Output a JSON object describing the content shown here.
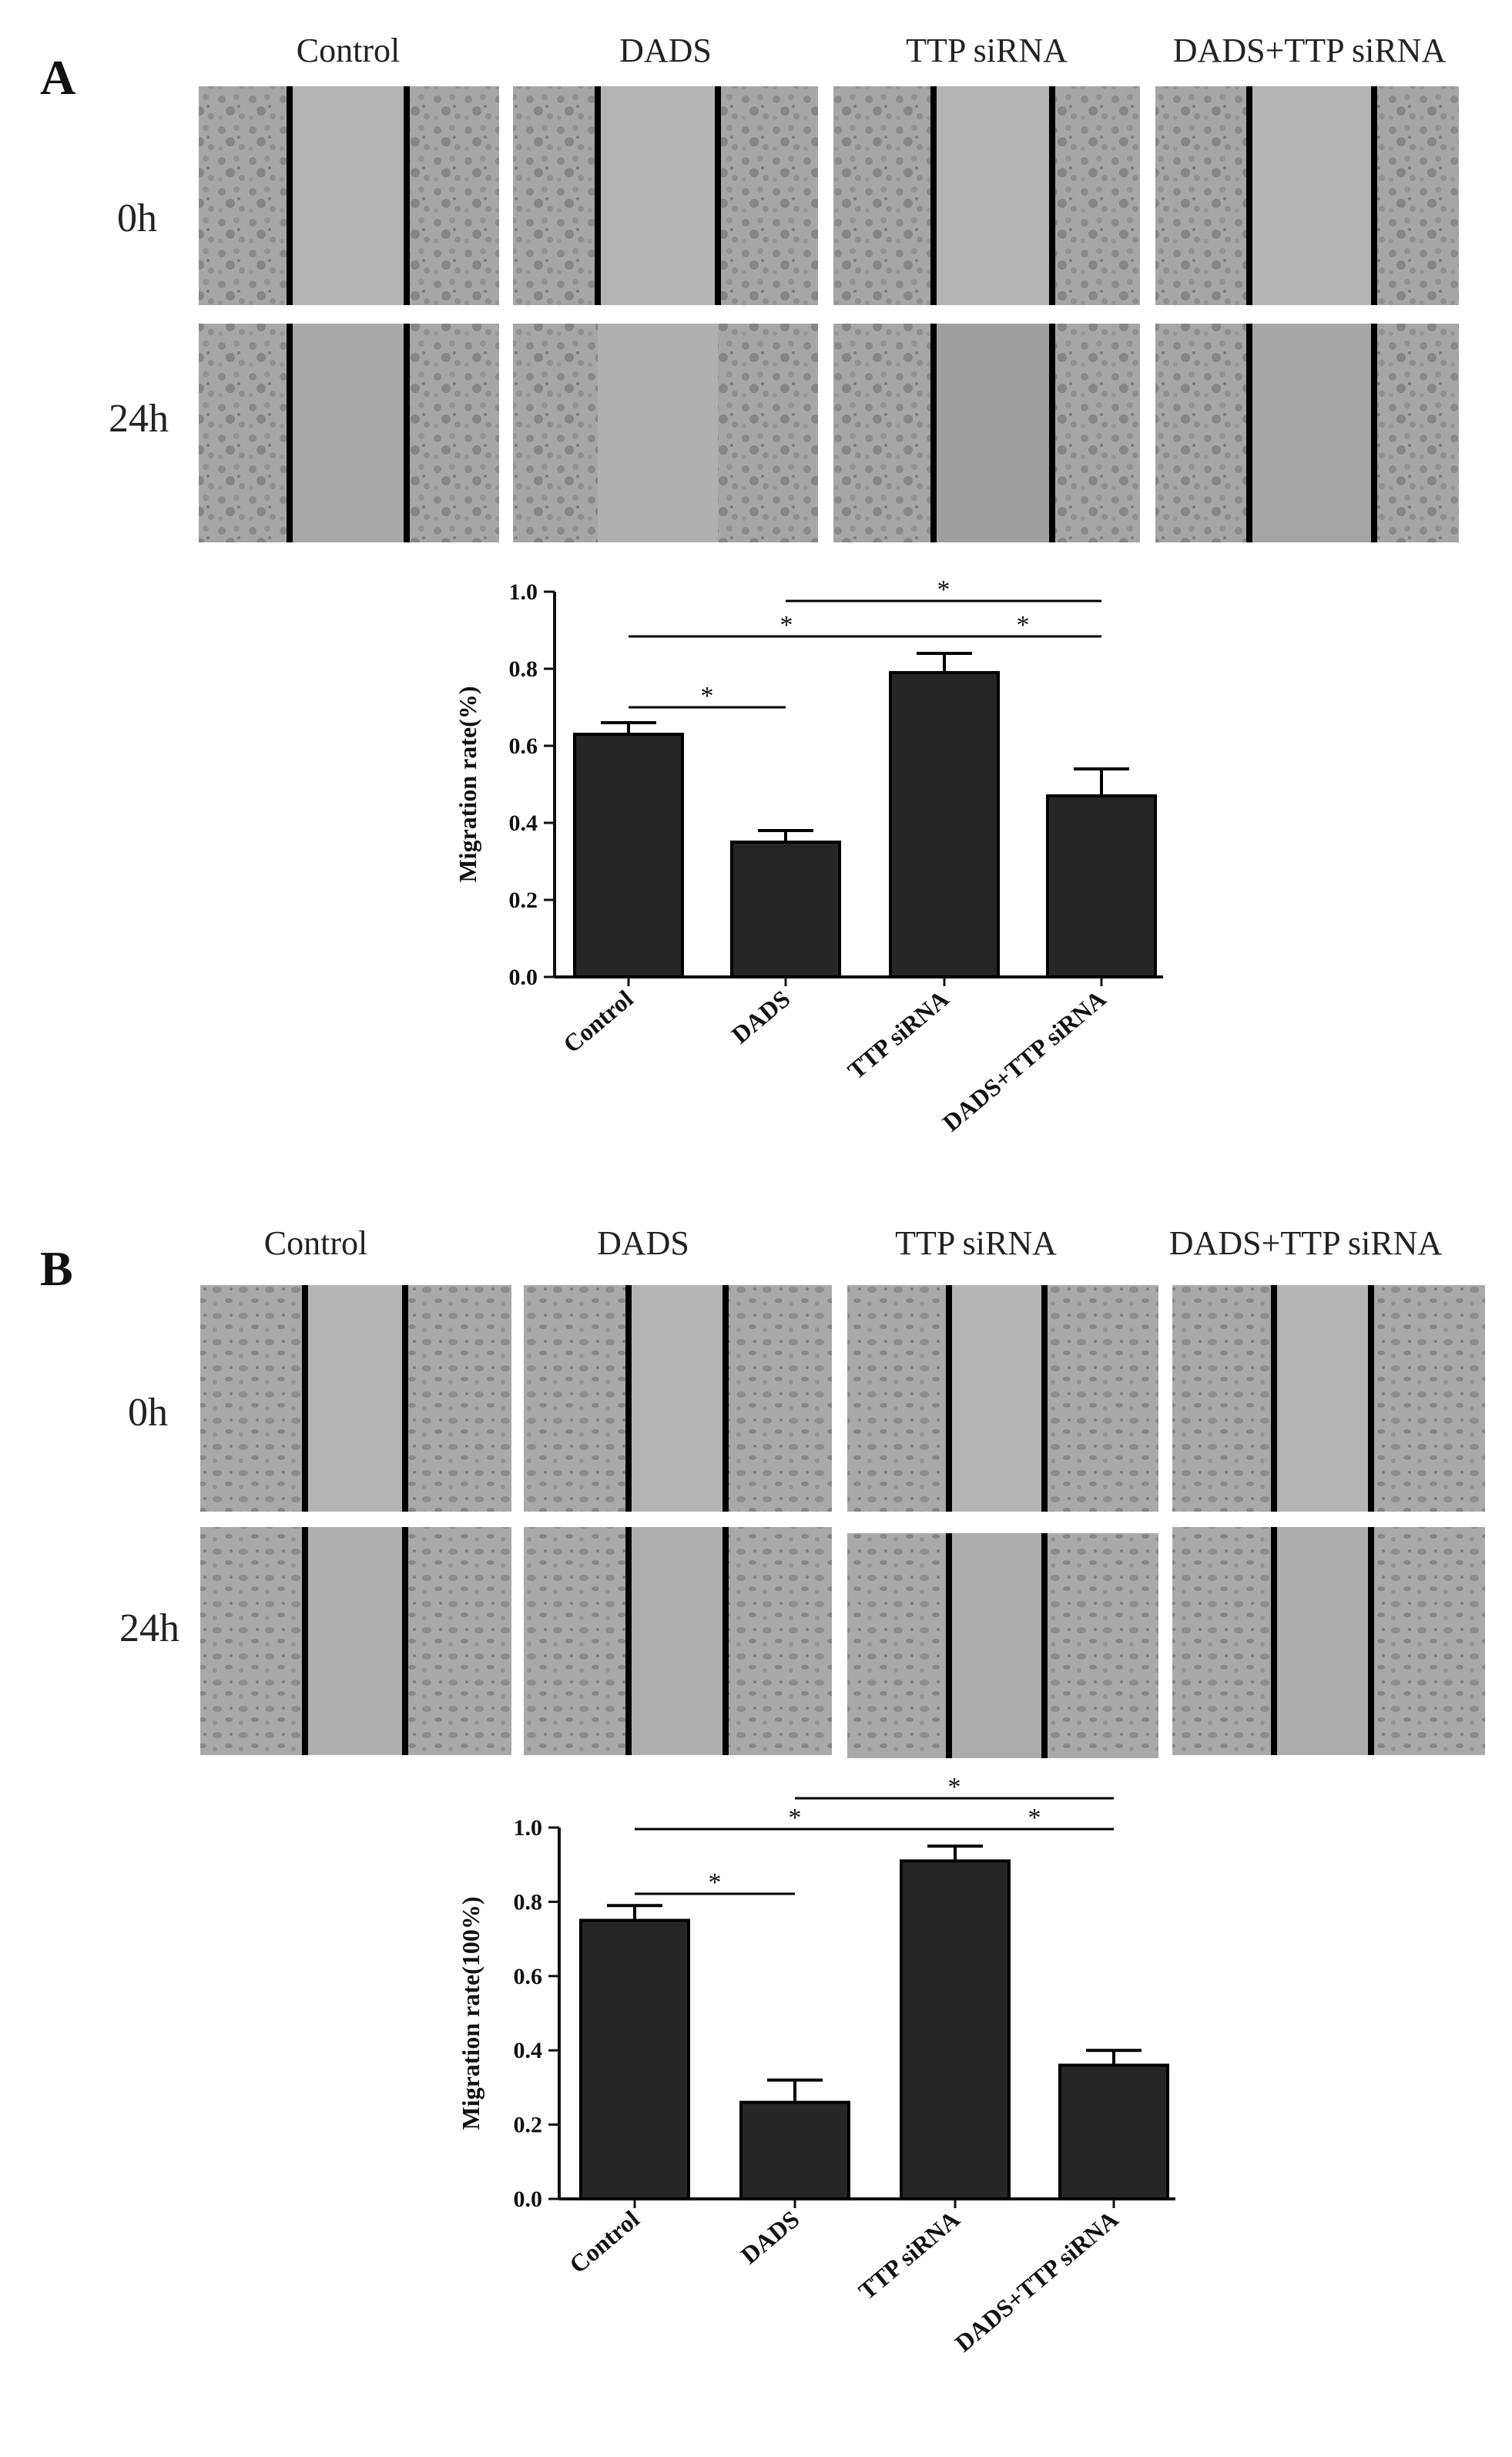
{
  "figure": {
    "panels": [
      {
        "letter": "A",
        "micrograph_columns": [
          "Control",
          "DADS",
          "TTP siRNA",
          "DADS+TTP siRNA"
        ],
        "micrograph_rows": [
          "0h",
          "24h"
        ]
      },
      {
        "letter": "B",
        "micrograph_columns": [
          "Control",
          "DADS",
          "TTP siRNA",
          "DADS+TTP siRNA"
        ],
        "micrograph_rows": [
          "0h",
          "24h"
        ]
      }
    ]
  },
  "chart_data": [
    {
      "type": "bar",
      "panel": "A",
      "categories": [
        "Control",
        "DADS",
        "TTP siRNA",
        "DADS+TTP siRNA"
      ],
      "values": [
        0.63,
        0.35,
        0.79,
        0.47
      ],
      "errors": [
        0.03,
        0.03,
        0.05,
        0.07
      ],
      "ylabel": "Migration rate(%)",
      "ylim": [
        0,
        1.0
      ],
      "yticks": [
        "0.0",
        "0.2",
        "0.4",
        "0.6",
        "0.8",
        "1.0"
      ],
      "significance": [
        {
          "from": "Control",
          "to": "DADS",
          "label": "*"
        },
        {
          "from": "Control",
          "to": "TTP siRNA",
          "label": "*"
        },
        {
          "from": "DADS",
          "to": "DADS+TTP siRNA",
          "label": "*"
        },
        {
          "from": "TTP siRNA",
          "to": "DADS+TTP siRNA",
          "label": "*"
        }
      ],
      "color": "#262626"
    },
    {
      "type": "bar",
      "panel": "B",
      "categories": [
        "Control",
        "DADS",
        "TTP siRNA",
        "DADS+TTP siRNA"
      ],
      "values": [
        0.75,
        0.26,
        0.91,
        0.36
      ],
      "errors": [
        0.04,
        0.06,
        0.04,
        0.04
      ],
      "ylabel": "Migration rate(100%)",
      "ylim": [
        0,
        1.0
      ],
      "yticks": [
        "0.0",
        "0.2",
        "0.4",
        "0.6",
        "0.8",
        "1.0"
      ],
      "significance": [
        {
          "from": "Control",
          "to": "DADS",
          "label": "*"
        },
        {
          "from": "Control",
          "to": "TTP siRNA",
          "label": "*"
        },
        {
          "from": "DADS",
          "to": "DADS+TTP siRNA",
          "label": "*"
        },
        {
          "from": "TTP siRNA",
          "to": "DADS+TTP siRNA",
          "label": "*"
        }
      ],
      "color": "#262626"
    }
  ]
}
